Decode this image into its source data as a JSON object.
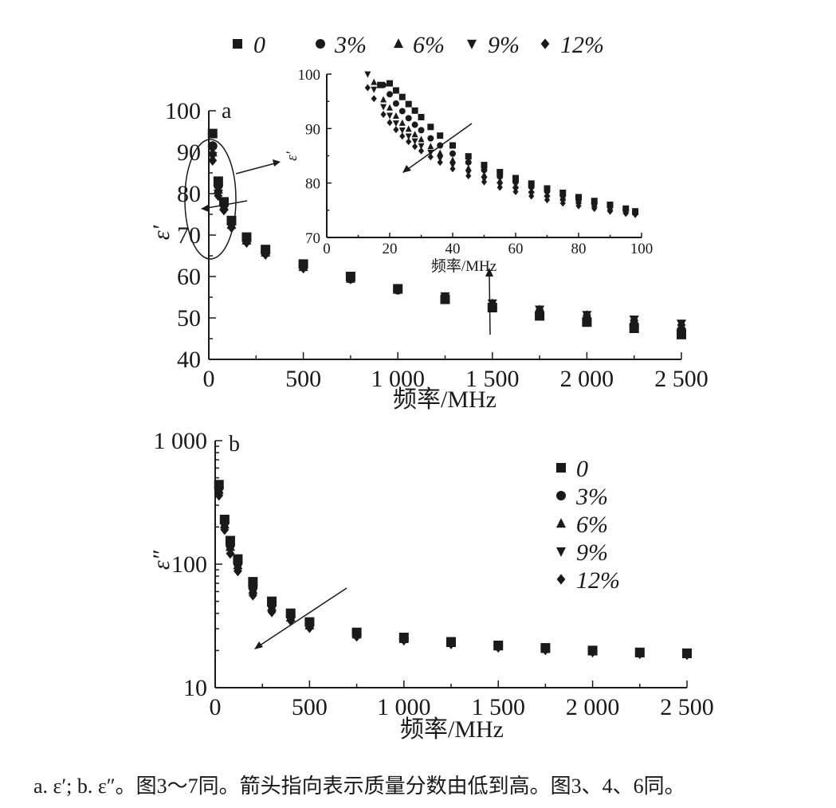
{
  "colors": {
    "marker": "#1a1a1a",
    "background": "#ffffff"
  },
  "legend_top": [
    "0",
    "3%",
    "6%",
    "9%",
    "12%"
  ],
  "legend_b": [
    "0",
    "3%",
    "6%",
    "9%",
    "12%"
  ],
  "caption": "a. ε′; b. ε″。图3～7同。箭头指向表示质量分数由低到高。图3、4、6同。",
  "chart_data": [
    {
      "id": "a",
      "type": "scatter",
      "panel_label": "a",
      "xlabel": "频率/MHz",
      "ylabel": "ε′",
      "xlim": [
        0,
        2500
      ],
      "ylim": [
        40,
        100
      ],
      "x_ticks": [
        0,
        500,
        1000,
        1500,
        2000,
        2500
      ],
      "x_tick_labels": [
        "0",
        "500",
        "1 000",
        "1 500",
        "2 000",
        "2 500"
      ],
      "y_ticks": [
        40,
        50,
        60,
        70,
        80,
        90,
        100
      ],
      "y_tick_labels": [
        "40",
        "50",
        "60",
        "70",
        "80",
        "90",
        "100"
      ],
      "marker_shapes": [
        "square",
        "circle",
        "triangle-up",
        "triangle-down",
        "diamond"
      ],
      "series": [
        {
          "name": "0",
          "x": [
            20,
            50,
            80,
            120,
            200,
            300,
            500,
            750,
            1000,
            1250,
            1500,
            1750,
            2000,
            2250,
            2500
          ],
          "y": [
            94.5,
            83,
            78,
            73.5,
            69.5,
            66.5,
            63,
            60,
            57,
            54.5,
            52.5,
            50.5,
            49,
            47.5,
            46
          ]
        },
        {
          "name": "3%",
          "x": [
            20,
            50,
            80,
            120,
            200,
            300,
            500,
            750,
            1000,
            1250,
            1500,
            1750,
            2000,
            2250,
            2500
          ],
          "y": [
            91.5,
            82,
            77.5,
            73,
            69,
            66,
            62.5,
            59.5,
            56.8,
            54.5,
            52.6,
            51,
            49.6,
            48.3,
            47
          ]
        },
        {
          "name": "6%",
          "x": [
            20,
            50,
            80,
            120,
            200,
            300,
            500,
            750,
            1000,
            1250,
            1500,
            1750,
            2000,
            2250,
            2500
          ],
          "y": [
            90,
            81,
            77,
            72.5,
            68.7,
            65.8,
            62.3,
            59.5,
            57,
            54.8,
            53,
            51.4,
            50,
            48.8,
            47.7
          ]
        },
        {
          "name": "9%",
          "x": [
            20,
            50,
            80,
            120,
            200,
            300,
            500,
            750,
            1000,
            1250,
            1500,
            1750,
            2000,
            2250,
            2500
          ],
          "y": [
            89,
            80,
            76.5,
            72.2,
            68.5,
            65.6,
            62.2,
            59.6,
            57.2,
            55.2,
            53.5,
            52,
            50.7,
            49.6,
            48.6
          ]
        },
        {
          "name": "12%",
          "x": [
            20,
            50,
            80,
            120,
            200,
            300,
            500,
            750,
            1000,
            1250,
            1500,
            1750,
            2000,
            2250,
            2500
          ],
          "y": [
            88,
            79.5,
            76,
            71.8,
            68.2,
            65.3,
            62,
            59.4,
            57,
            55,
            53.4,
            51.9,
            50.6,
            49.4,
            48.3
          ]
        }
      ]
    },
    {
      "id": "a-inset",
      "type": "scatter",
      "xlabel": "频率/MHz",
      "ylabel": "ε′",
      "xlim": [
        0,
        100
      ],
      "ylim": [
        70,
        100
      ],
      "x_ticks": [
        0,
        20,
        40,
        60,
        80,
        100
      ],
      "x_tick_labels": [
        "0",
        "20",
        "40",
        "60",
        "80",
        "100"
      ],
      "y_ticks": [
        70,
        80,
        90,
        100
      ],
      "y_tick_labels": [
        "70",
        "80",
        "90",
        "100"
      ],
      "marker_shapes": [
        "square",
        "circle",
        "triangle-up",
        "triangle-down",
        "diamond"
      ],
      "series": [
        {
          "name": "0",
          "x": [
            17,
            20,
            22,
            24,
            26,
            28,
            30,
            33,
            36,
            40,
            45,
            50,
            55,
            60,
            65,
            70,
            75,
            80,
            85,
            90,
            95,
            98
          ],
          "y": [
            98,
            98.3,
            97,
            95.8,
            94.5,
            93.3,
            92.1,
            90.3,
            88.7,
            86.9,
            84.9,
            83.3,
            82,
            80.9,
            79.9,
            79,
            78.2,
            77.4,
            76.7,
            76,
            75.3,
            74.8
          ]
        },
        {
          "name": "3%",
          "x": [
            18,
            20,
            22,
            24,
            26,
            28,
            30,
            33,
            36,
            40,
            45,
            50,
            55,
            60,
            65,
            70,
            75,
            80,
            85,
            90,
            95,
            98
          ],
          "y": [
            98,
            96.3,
            94.6,
            93.2,
            91.9,
            90.7,
            89.7,
            88.2,
            86.9,
            85.4,
            83.8,
            82.4,
            81.2,
            80.2,
            79.3,
            78.5,
            77.7,
            77,
            76.3,
            75.7,
            75.1,
            74.7
          ]
        },
        {
          "name": "6%",
          "x": [
            15,
            18,
            20,
            22,
            24,
            26,
            28,
            30,
            33,
            36,
            40,
            45,
            50,
            55,
            60,
            65,
            70,
            75,
            80,
            85,
            90,
            95,
            98
          ],
          "y": [
            98.5,
            95.3,
            93.8,
            92.3,
            91,
            89.9,
            88.9,
            88,
            86.7,
            85.5,
            84.2,
            82.7,
            81.5,
            80.4,
            79.5,
            78.6,
            77.9,
            77.2,
            76.6,
            76,
            75.4,
            74.9,
            74.6
          ]
        },
        {
          "name": "9%",
          "x": [
            13,
            15,
            18,
            20,
            22,
            24,
            26,
            28,
            30,
            33,
            36,
            40,
            45,
            50,
            55,
            60,
            65,
            70,
            75,
            80,
            85,
            90,
            95,
            98
          ],
          "y": [
            100,
            97.2,
            94,
            92.4,
            91,
            89.7,
            88.6,
            87.7,
            86.8,
            85.6,
            84.5,
            83.3,
            81.9,
            80.7,
            79.7,
            78.8,
            78,
            77.3,
            76.7,
            76.1,
            75.6,
            75.1,
            74.6,
            74.4
          ]
        },
        {
          "name": "12%",
          "x": [
            13,
            15,
            18,
            20,
            22,
            24,
            26,
            28,
            30,
            33,
            36,
            40,
            45,
            50,
            55,
            60,
            65,
            70,
            75,
            80,
            85,
            90,
            95,
            98
          ],
          "y": [
            97.5,
            95.5,
            92.6,
            91.1,
            89.8,
            88.6,
            87.6,
            86.7,
            85.9,
            84.8,
            83.8,
            82.6,
            81.3,
            80.2,
            79.2,
            78.4,
            77.6,
            76.9,
            76.3,
            75.8,
            75.3,
            74.8,
            74.4,
            74.2
          ]
        }
      ]
    },
    {
      "id": "b",
      "type": "scatter",
      "panel_label": "b",
      "xlabel": "频率/MHz",
      "ylabel": "ε″",
      "y_scale": "log",
      "xlim": [
        0,
        2500
      ],
      "ylim": [
        10,
        1000
      ],
      "x_ticks": [
        0,
        500,
        1000,
        1500,
        2000,
        2500
      ],
      "x_tick_labels": [
        "0",
        "500",
        "1 000",
        "1 500",
        "2 000",
        "2 500"
      ],
      "y_ticks": [
        10,
        100,
        1000
      ],
      "y_tick_labels": [
        "10",
        "100",
        "1 000"
      ],
      "legend": "right",
      "marker_shapes": [
        "square",
        "circle",
        "triangle-up",
        "triangle-down",
        "diamond"
      ],
      "series": [
        {
          "name": "0",
          "x": [
            20,
            50,
            80,
            120,
            200,
            300,
            400,
            500,
            750,
            1000,
            1250,
            1500,
            1750,
            2000,
            2250,
            2500
          ],
          "y": [
            440,
            230,
            155,
            110,
            72,
            50,
            40,
            34,
            28,
            25.5,
            23.5,
            22,
            21,
            20,
            19.3,
            19
          ]
        },
        {
          "name": "3%",
          "x": [
            20,
            50,
            80,
            120,
            200,
            300,
            400,
            500,
            750,
            1000,
            1250,
            1500,
            1750,
            2000,
            2250,
            2500
          ],
          "y": [
            420,
            220,
            145,
            103,
            66,
            47,
            38,
            33,
            27.5,
            25,
            23.2,
            21.8,
            20.8,
            19.9,
            19.2,
            18.9
          ]
        },
        {
          "name": "6%",
          "x": [
            20,
            50,
            80,
            120,
            200,
            300,
            400,
            500,
            750,
            1000,
            1250,
            1500,
            1750,
            2000,
            2250,
            2500
          ],
          "y": [
            400,
            210,
            138,
            98,
            62,
            45,
            37,
            32,
            27,
            24.8,
            23,
            21.6,
            20.6,
            19.7,
            19,
            18.7
          ]
        },
        {
          "name": "9%",
          "x": [
            20,
            50,
            80,
            120,
            200,
            300,
            400,
            500,
            750,
            1000,
            1250,
            1500,
            1750,
            2000,
            2250,
            2500
          ],
          "y": [
            380,
            200,
            130,
            93,
            59,
            43,
            36,
            31,
            26.5,
            24.5,
            22.8,
            21.4,
            20.4,
            19.5,
            18.9,
            18.6
          ]
        },
        {
          "name": "12%",
          "x": [
            20,
            50,
            80,
            120,
            200,
            300,
            400,
            500,
            750,
            1000,
            1250,
            1500,
            1750,
            2000,
            2250,
            2500
          ],
          "y": [
            360,
            190,
            122,
            88,
            56,
            41,
            35,
            30.5,
            26,
            24.2,
            22.6,
            21.2,
            20.2,
            19.4,
            18.8,
            18.5
          ]
        }
      ]
    }
  ]
}
